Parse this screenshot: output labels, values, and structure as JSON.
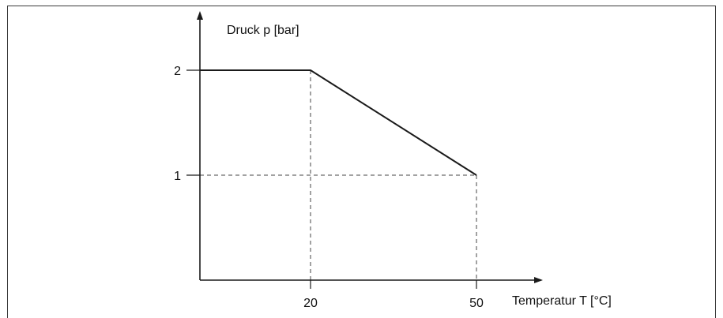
{
  "chart_data": {
    "type": "line",
    "title": "",
    "ylabel": "Druck p [bar]",
    "xlabel": "Temperatur T [°C]",
    "xlim": [
      0,
      60
    ],
    "ylim": [
      0,
      2.5
    ],
    "x_ticks": [
      20,
      50
    ],
    "y_ticks": [
      1,
      2
    ],
    "x_tick_labels": [
      "20",
      "50"
    ],
    "y_tick_labels": [
      "1",
      "2"
    ],
    "grid": false,
    "reference_lines": "dashed guide lines from the breakpoints to the axes",
    "series": [
      {
        "x": [
          0,
          20,
          50
        ],
        "y": [
          2,
          2,
          1
        ],
        "color": "#1a1a1a"
      }
    ]
  }
}
